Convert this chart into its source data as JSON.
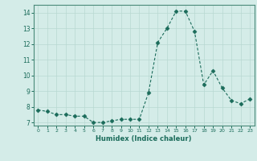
{
  "x": [
    0,
    1,
    2,
    3,
    4,
    5,
    6,
    7,
    8,
    9,
    10,
    11,
    12,
    13,
    14,
    15,
    16,
    17,
    18,
    19,
    20,
    21,
    22,
    23
  ],
  "y": [
    7.8,
    7.7,
    7.5,
    7.5,
    7.4,
    7.4,
    7.0,
    7.0,
    7.1,
    7.2,
    7.2,
    7.2,
    8.9,
    12.1,
    13.0,
    14.1,
    14.1,
    12.8,
    9.4,
    10.3,
    9.2,
    8.4,
    8.2,
    8.5
  ],
  "xlabel": "Humidex (Indice chaleur)",
  "ylim": [
    6.8,
    14.5
  ],
  "xlim": [
    -0.5,
    23.5
  ],
  "yticks": [
    7,
    8,
    9,
    10,
    11,
    12,
    13,
    14
  ],
  "xticks": [
    0,
    1,
    2,
    3,
    4,
    5,
    6,
    7,
    8,
    9,
    10,
    11,
    12,
    13,
    14,
    15,
    16,
    17,
    18,
    19,
    20,
    21,
    22,
    23
  ],
  "line_color": "#1a6b5a",
  "marker": "D",
  "marker_size": 2.5,
  "bg_color": "#d4ece8",
  "grid_color": "#b8d8d2",
  "font_color": "#1a6b5a",
  "spine_color": "#4a8a7a"
}
